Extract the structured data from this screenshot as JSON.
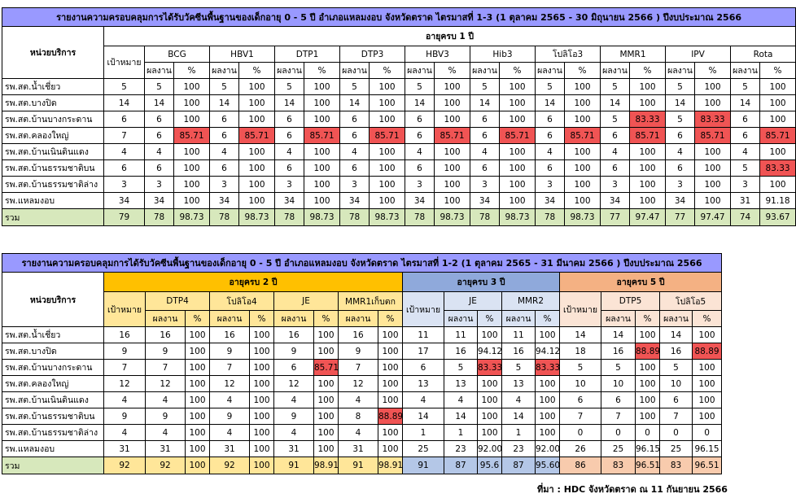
{
  "table1": {
    "title": "รายงานความครอบคลุมการได้รับวัคซีนพื้นฐานของเด็กอายุ 0 - 5 ปี อำเภอแหลมงอบ จังหวัดตราด ไตรมาสที่ 1-3 (1 ตุลาคม 2565 - 30 มิถุนายน 2566 ) ปีงบประมาณ 2566",
    "unit_header": "หน่วยบริการ",
    "age_header": "อายุครบ 1 ปี",
    "target_header": "เป้าหมาย",
    "vaccines": [
      "BCG",
      "HBV1",
      "DTP1",
      "DTP3",
      "HBV3",
      "Hib3",
      "โปลิโอ3",
      "MMR1",
      "IPV",
      "Rota"
    ],
    "result_label": "ผลงาน",
    "percent_label": "%",
    "rows": [
      {
        "name": "รพ.สต.น้ำเชี่ยว",
        "target": "5",
        "cells": [
          [
            "5",
            "100"
          ],
          [
            "5",
            "100"
          ],
          [
            "5",
            "100"
          ],
          [
            "5",
            "100"
          ],
          [
            "5",
            "100"
          ],
          [
            "5",
            "100"
          ],
          [
            "5",
            "100"
          ],
          [
            "5",
            "100"
          ],
          [
            "5",
            "100"
          ],
          [
            "5",
            "100"
          ]
        ]
      },
      {
        "name": "รพ.สต.บางปิด",
        "target": "14",
        "cells": [
          [
            "14",
            "100"
          ],
          [
            "14",
            "100"
          ],
          [
            "14",
            "100"
          ],
          [
            "14",
            "100"
          ],
          [
            "14",
            "100"
          ],
          [
            "14",
            "100"
          ],
          [
            "14",
            "100"
          ],
          [
            "14",
            "100"
          ],
          [
            "14",
            "100"
          ],
          [
            "14",
            "100"
          ]
        ]
      },
      {
        "name": "รพ.สต.บ้านบางกระดาน",
        "target": "6",
        "cells": [
          [
            "6",
            "100"
          ],
          [
            "6",
            "100"
          ],
          [
            "6",
            "100"
          ],
          [
            "6",
            "100"
          ],
          [
            "6",
            "100"
          ],
          [
            "6",
            "100"
          ],
          [
            "6",
            "100"
          ],
          [
            "5",
            "83.33"
          ],
          [
            "5",
            "83.33"
          ],
          [
            "6",
            "100"
          ]
        ]
      },
      {
        "name": "รพ.สต.คลองใหญ่",
        "target": "7",
        "cells": [
          [
            "6",
            "85.71"
          ],
          [
            "6",
            "85.71"
          ],
          [
            "6",
            "85.71"
          ],
          [
            "6",
            "85.71"
          ],
          [
            "6",
            "85.71"
          ],
          [
            "6",
            "85.71"
          ],
          [
            "6",
            "85.71"
          ],
          [
            "6",
            "85.71"
          ],
          [
            "6",
            "85.71"
          ],
          [
            "6",
            "85.71"
          ]
        ]
      },
      {
        "name": "รพ.สต.บ้านเนินดินแดง",
        "target": "4",
        "cells": [
          [
            "4",
            "100"
          ],
          [
            "4",
            "100"
          ],
          [
            "4",
            "100"
          ],
          [
            "4",
            "100"
          ],
          [
            "4",
            "100"
          ],
          [
            "4",
            "100"
          ],
          [
            "4",
            "100"
          ],
          [
            "4",
            "100"
          ],
          [
            "4",
            "100"
          ],
          [
            "4",
            "100"
          ]
        ]
      },
      {
        "name": "รพ.สต.บ้านธรรมชาติบน",
        "target": "6",
        "cells": [
          [
            "6",
            "100"
          ],
          [
            "6",
            "100"
          ],
          [
            "6",
            "100"
          ],
          [
            "6",
            "100"
          ],
          [
            "6",
            "100"
          ],
          [
            "6",
            "100"
          ],
          [
            "6",
            "100"
          ],
          [
            "6",
            "100"
          ],
          [
            "6",
            "100"
          ],
          [
            "5",
            "83.33"
          ]
        ]
      },
      {
        "name": "รพ.สต.บ้านธรรมชาติล่าง",
        "target": "3",
        "cells": [
          [
            "3",
            "100"
          ],
          [
            "3",
            "100"
          ],
          [
            "3",
            "100"
          ],
          [
            "3",
            "100"
          ],
          [
            "3",
            "100"
          ],
          [
            "3",
            "100"
          ],
          [
            "3",
            "100"
          ],
          [
            "3",
            "100"
          ],
          [
            "3",
            "100"
          ],
          [
            "3",
            "100"
          ]
        ]
      },
      {
        "name": "รพ.แหลมงอบ",
        "target": "34",
        "cells": [
          [
            "34",
            "100"
          ],
          [
            "34",
            "100"
          ],
          [
            "34",
            "100"
          ],
          [
            "34",
            "100"
          ],
          [
            "34",
            "100"
          ],
          [
            "34",
            "100"
          ],
          [
            "34",
            "100"
          ],
          [
            "34",
            "100"
          ],
          [
            "34",
            "100"
          ],
          [
            "31",
            "91.18"
          ]
        ]
      }
    ],
    "total": {
      "name": "รวม",
      "target": "79",
      "cells": [
        [
          "78",
          "98.73"
        ],
        [
          "78",
          "98.73"
        ],
        [
          "78",
          "98.73"
        ],
        [
          "78",
          "98.73"
        ],
        [
          "78",
          "98.73"
        ],
        [
          "78",
          "98.73"
        ],
        [
          "78",
          "98.73"
        ],
        [
          "77",
          "97.47"
        ],
        [
          "77",
          "97.47"
        ],
        [
          "74",
          "93.67"
        ]
      ]
    }
  },
  "table2": {
    "title": "รายงานความครอบคลุมการได้รับวัคซีนพื้นฐานของเด็กอายุ 0 - 5 ปี อำเภอแหลมงอบ จังหวัดตราด ไตรมาสที่ 1-2 (1 ตุลาคม 2565 - 31 มีนาคม 2566 ) ปีงบประมาณ 2566",
    "unit_header": "หน่วยบริการ",
    "target_header": "เป้าหมาย",
    "result_label": "ผลงาน",
    "percent_label": "%",
    "groups": [
      {
        "age": "อายุครบ 2 ปี",
        "vaccines": [
          "DTP4",
          "โปลิโอ4",
          "JE",
          "MMR1เก็บตก"
        ]
      },
      {
        "age": "อายุครบ 3 ปี",
        "vaccines": [
          "JE",
          "MMR2"
        ]
      },
      {
        "age": "อายุครบ 5 ปี",
        "vaccines": [
          "DTP5",
          "โปลิโอ5"
        ]
      }
    ],
    "rows": [
      {
        "name": "รพ.สต.น้ำเชี่ยว",
        "g": [
          [
            "16",
            [
              [
                "16",
                "100"
              ],
              [
                "16",
                "100"
              ],
              [
                "16",
                "100"
              ],
              [
                "16",
                "100"
              ]
            ]
          ],
          [
            "11",
            [
              [
                "11",
                "100"
              ],
              [
                "11",
                "100"
              ]
            ]
          ],
          [
            "14",
            [
              [
                "14",
                "100"
              ],
              [
                "14",
                "100"
              ]
            ]
          ]
        ]
      },
      {
        "name": "รพ.สต.บางปิด",
        "g": [
          [
            "9",
            [
              [
                "9",
                "100"
              ],
              [
                "9",
                "100"
              ],
              [
                "9",
                "100"
              ],
              [
                "9",
                "100"
              ]
            ]
          ],
          [
            "17",
            [
              [
                "16",
                "94.12"
              ],
              [
                "16",
                "94.12"
              ]
            ]
          ],
          [
            "18",
            [
              [
                "16",
                "88.89"
              ],
              [
                "16",
                "88.89"
              ]
            ]
          ]
        ]
      },
      {
        "name": "รพ.สต.บ้านบางกระดาน",
        "g": [
          [
            "7",
            [
              [
                "7",
                "100"
              ],
              [
                "7",
                "100"
              ],
              [
                "6",
                "85.71"
              ],
              [
                "7",
                "100"
              ]
            ]
          ],
          [
            "6",
            [
              [
                "5",
                "83.33"
              ],
              [
                "5",
                "83.33"
              ]
            ]
          ],
          [
            "5",
            [
              [
                "5",
                "100"
              ],
              [
                "5",
                "100"
              ]
            ]
          ]
        ]
      },
      {
        "name": "รพ.สต.คลองใหญ่",
        "g": [
          [
            "12",
            [
              [
                "12",
                "100"
              ],
              [
                "12",
                "100"
              ],
              [
                "12",
                "100"
              ],
              [
                "12",
                "100"
              ]
            ]
          ],
          [
            "13",
            [
              [
                "13",
                "100"
              ],
              [
                "13",
                "100"
              ]
            ]
          ],
          [
            "10",
            [
              [
                "10",
                "100"
              ],
              [
                "10",
                "100"
              ]
            ]
          ]
        ]
      },
      {
        "name": "รพ.สต.บ้านเนินดินแดง",
        "g": [
          [
            "4",
            [
              [
                "4",
                "100"
              ],
              [
                "4",
                "100"
              ],
              [
                "4",
                "100"
              ],
              [
                "4",
                "100"
              ]
            ]
          ],
          [
            "4",
            [
              [
                "4",
                "100"
              ],
              [
                "4",
                "100"
              ]
            ]
          ],
          [
            "6",
            [
              [
                "6",
                "100"
              ],
              [
                "6",
                "100"
              ]
            ]
          ]
        ]
      },
      {
        "name": "รพ.สต.บ้านธรรมชาติบน",
        "g": [
          [
            "9",
            [
              [
                "9",
                "100"
              ],
              [
                "9",
                "100"
              ],
              [
                "9",
                "100"
              ],
              [
                "8",
                "88.89"
              ]
            ]
          ],
          [
            "14",
            [
              [
                "14",
                "100"
              ],
              [
                "14",
                "100"
              ]
            ]
          ],
          [
            "7",
            [
              [
                "7",
                "100"
              ],
              [
                "7",
                "100"
              ]
            ]
          ]
        ]
      },
      {
        "name": "รพ.สต.บ้านธรรมชาติล่าง",
        "g": [
          [
            "4",
            [
              [
                "4",
                "100"
              ],
              [
                "4",
                "100"
              ],
              [
                "4",
                "100"
              ],
              [
                "4",
                "100"
              ]
            ]
          ],
          [
            "1",
            [
              [
                "1",
                "100"
              ],
              [
                "1",
                "100"
              ]
            ]
          ],
          [
            "0",
            [
              [
                "0",
                "0"
              ],
              [
                "0",
                "0"
              ]
            ]
          ]
        ]
      },
      {
        "name": "รพ.แหลมงอบ",
        "g": [
          [
            "31",
            [
              [
                "31",
                "100"
              ],
              [
                "31",
                "100"
              ],
              [
                "31",
                "100"
              ],
              [
                "31",
                "100"
              ]
            ]
          ],
          [
            "25",
            [
              [
                "23",
                "92.00"
              ],
              [
                "23",
                "92.00"
              ]
            ]
          ],
          [
            "26",
            [
              [
                "25",
                "96.15"
              ],
              [
                "25",
                "96.15"
              ]
            ]
          ]
        ]
      }
    ],
    "total": {
      "name": "รวม",
      "g": [
        [
          "92",
          [
            [
              "92",
              "100"
            ],
            [
              "92",
              "100"
            ],
            [
              "91",
              "98.91"
            ],
            [
              "91",
              "98.91"
            ]
          ]
        ],
        [
          "91",
          [
            [
              "87",
              "95.6"
            ],
            [
              "87",
              "95.60"
            ]
          ]
        ],
        [
          "86",
          [
            [
              "83",
              "96.51"
            ],
            [
              "83",
              "96.51"
            ]
          ]
        ]
      ]
    }
  },
  "source": "ที่มา : HDC จังหวัดตราด ณ 11 กันยายน  2566"
}
